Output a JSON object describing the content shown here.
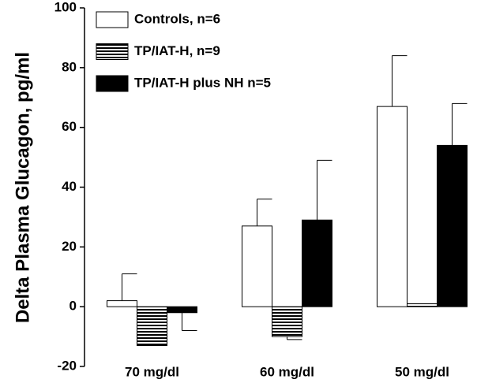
{
  "chart_data": {
    "type": "bar",
    "ylabel": "Delta Plasma Glucagon, pg/ml",
    "categories": [
      "70 mg/dl",
      "60 mg/dl",
      "50 mg/dl"
    ],
    "series": [
      {
        "name": "Controls, n=6",
        "color": "#ffffff",
        "values": [
          2,
          27,
          67
        ],
        "errors": [
          9,
          9,
          17
        ]
      },
      {
        "name": "TP/IAT-H, n=9",
        "color": "#000000",
        "hatch": "horizontal",
        "values": [
          -13,
          -10,
          1
        ],
        "errors": [
          0,
          1,
          0
        ]
      },
      {
        "name": "TP/IAT-H plus NH n=5",
        "color": "#000000",
        "values": [
          -2,
          29,
          54
        ],
        "errors": [
          6,
          20,
          14
        ]
      }
    ],
    "ylim": [
      -20,
      100
    ],
    "yticks": [
      -20,
      0,
      20,
      40,
      60,
      80,
      100
    ],
    "legend": "upper left"
  }
}
